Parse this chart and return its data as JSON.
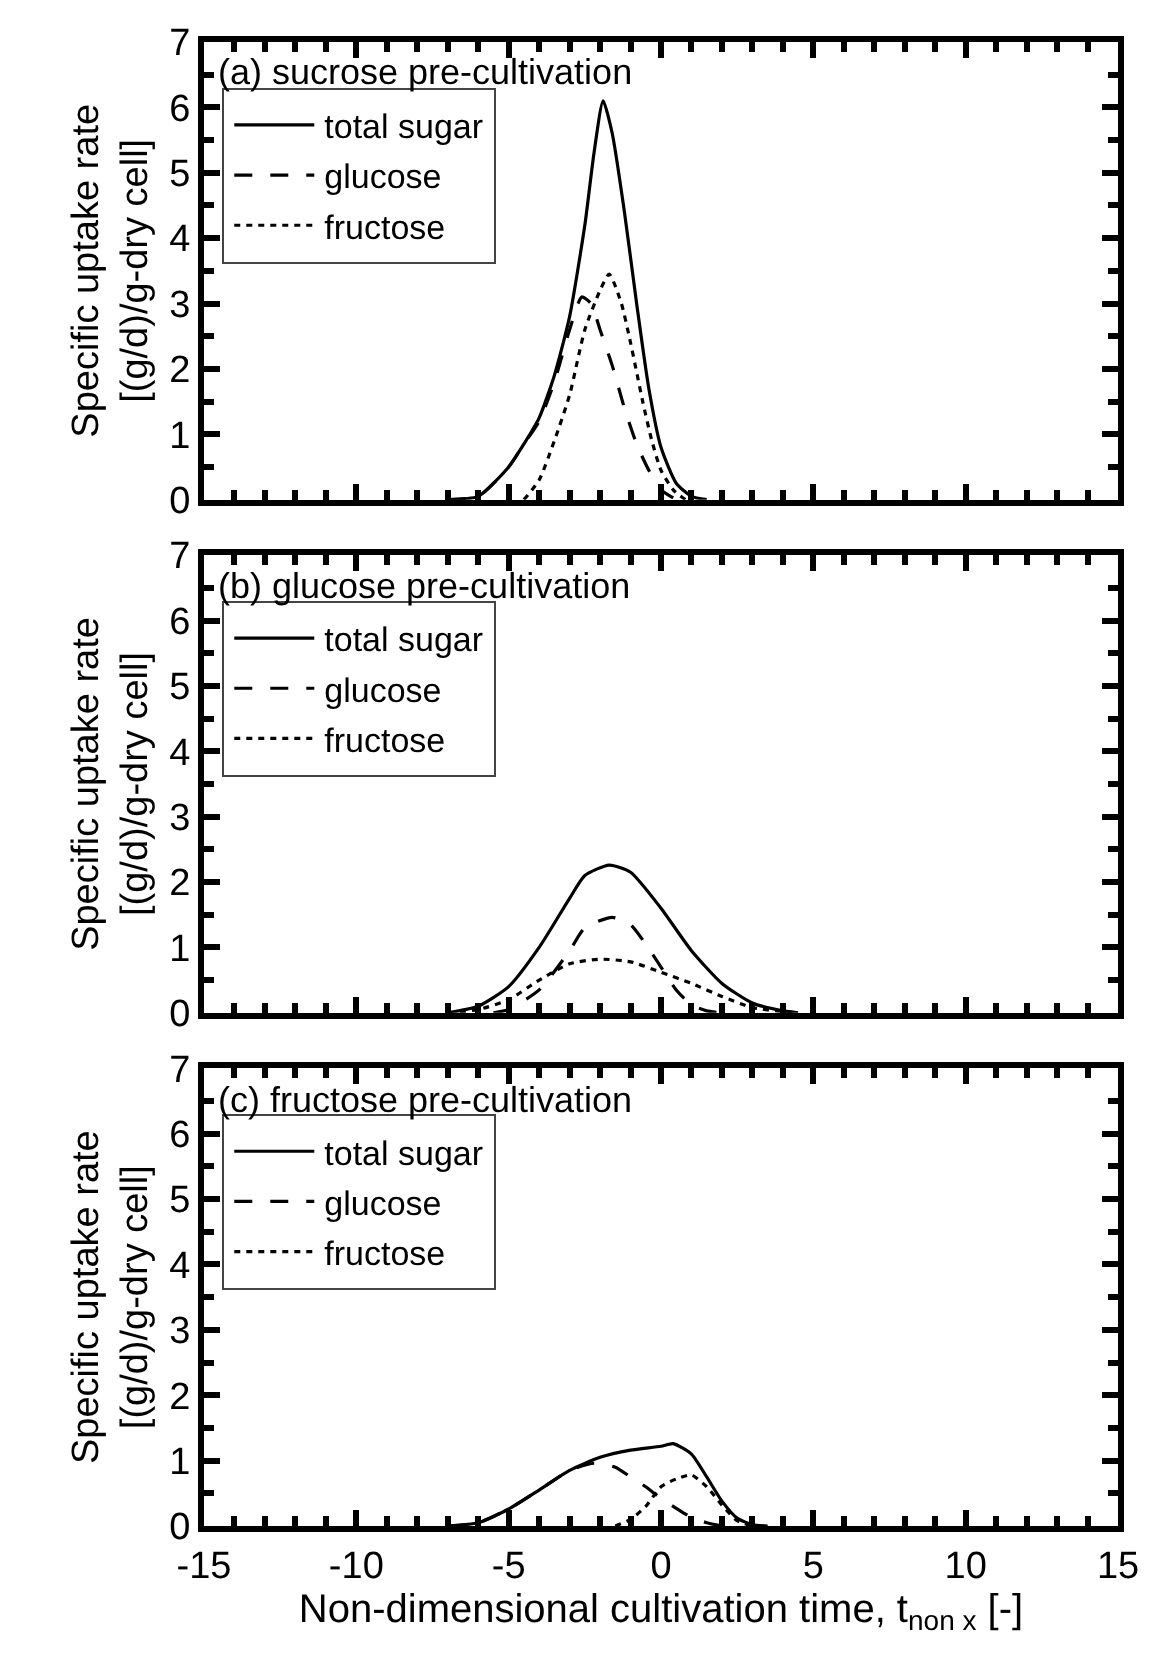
{
  "chart_data": [
    {
      "type": "line",
      "title": "(a) sucrose pre-cultivation",
      "ylabel": "Specific uptake rate\n[(g/d)/g-dry cell]",
      "xlim": [
        -15,
        15
      ],
      "xticks": [
        -15,
        -10,
        -5,
        0,
        5,
        10,
        15
      ],
      "ylim": [
        0,
        7
      ],
      "yticks": [
        0,
        1,
        2,
        3,
        4,
        5,
        6,
        7
      ],
      "tick_labels": "y",
      "legend": "top left",
      "marker": "none",
      "series": [
        {
          "name": "total sugar",
          "color": "#000000",
          "line_style": "solid",
          "x": [
            -7,
            -6,
            -5,
            -4.5,
            -4,
            -3.5,
            -3,
            -2.5,
            -2.2,
            -1.9,
            -1.6,
            -1.2,
            -0.8,
            -0.4,
            0,
            0.5,
            1,
            1.5
          ],
          "values": [
            0,
            0.05,
            0.5,
            0.85,
            1.25,
            1.9,
            2.8,
            4.2,
            5.3,
            6.1,
            5.6,
            4.4,
            3.0,
            1.7,
            0.8,
            0.25,
            0.05,
            0
          ]
        },
        {
          "name": "glucose",
          "color": "#000000",
          "line_style": "dashed",
          "x": [
            -7,
            -6,
            -5,
            -4.5,
            -4,
            -3.5,
            -3,
            -2.6,
            -2.3,
            -2,
            -1.6,
            -1.2,
            -0.8,
            -0.4,
            0,
            0.5
          ],
          "values": [
            0,
            0.05,
            0.5,
            0.85,
            1.2,
            1.8,
            2.6,
            3.1,
            3.0,
            2.6,
            2.05,
            1.4,
            0.85,
            0.45,
            0.15,
            0
          ]
        },
        {
          "name": "fructose",
          "color": "#000000",
          "line_style": "dotted",
          "x": [
            -4.5,
            -4,
            -3.5,
            -3,
            -2.5,
            -2,
            -1.7,
            -1.3,
            -1,
            -0.6,
            -0.3,
            0,
            0.4,
            0.8
          ],
          "values": [
            0,
            0.3,
            0.9,
            1.6,
            2.6,
            3.2,
            3.45,
            3.0,
            2.4,
            1.5,
            0.9,
            0.45,
            0.15,
            0
          ]
        }
      ]
    },
    {
      "type": "line",
      "title": "(b) glucose pre-cultivation",
      "ylabel": "Specific uptake rate\n[(g/d)/g-dry cell]",
      "xlim": [
        -15,
        15
      ],
      "xticks": [
        -15,
        -10,
        -5,
        0,
        5,
        10,
        15
      ],
      "ylim": [
        0,
        7
      ],
      "yticks": [
        0,
        1,
        2,
        3,
        4,
        5,
        6,
        7
      ],
      "tick_labels": "y",
      "legend": "top left",
      "marker": "none",
      "series": [
        {
          "name": "total sugar",
          "color": "#000000",
          "line_style": "solid",
          "x": [
            -7,
            -6,
            -5,
            -4,
            -3,
            -2.5,
            -1.7,
            -1,
            0,
            1,
            2,
            3,
            4,
            4.5
          ],
          "values": [
            0,
            0.1,
            0.4,
            1.0,
            1.75,
            2.1,
            2.26,
            2.15,
            1.6,
            0.95,
            0.45,
            0.15,
            0.03,
            0
          ]
        },
        {
          "name": "glucose",
          "color": "#000000",
          "line_style": "dashed",
          "x": [
            -5.5,
            -5,
            -4,
            -3,
            -2.5,
            -1.6,
            -1,
            -0.5,
            0,
            0.5,
            1,
            1.5,
            2
          ],
          "values": [
            0,
            0.05,
            0.35,
            0.95,
            1.3,
            1.46,
            1.35,
            1.05,
            0.7,
            0.35,
            0.12,
            0.03,
            0
          ]
        },
        {
          "name": "fructose",
          "color": "#000000",
          "line_style": "dotted",
          "x": [
            -7,
            -6,
            -5,
            -4,
            -3,
            -2,
            -1,
            0,
            1,
            2,
            3,
            4,
            4.5
          ],
          "values": [
            0,
            0.05,
            0.2,
            0.5,
            0.75,
            0.82,
            0.78,
            0.62,
            0.45,
            0.25,
            0.08,
            0.02,
            0
          ]
        }
      ]
    },
    {
      "type": "line",
      "title": "(c) fructose pre-cultivation",
      "ylabel": "Specific uptake rate\n[(g/d)/g-dry cell]",
      "xlabel": "Non-dimensional cultivation time, t$_{non x}$ [-]",
      "xlim": [
        -15,
        15
      ],
      "xticks": [
        -15,
        -10,
        -5,
        0,
        5,
        10,
        15
      ],
      "ylim": [
        0,
        7
      ],
      "yticks": [
        0,
        1,
        2,
        3,
        4,
        5,
        6,
        7
      ],
      "legend": "top left",
      "marker": "none",
      "series": [
        {
          "name": "total sugar",
          "color": "#000000",
          "line_style": "solid",
          "x": [
            -7,
            -6,
            -5,
            -4,
            -3,
            -2,
            -1,
            0,
            0.4,
            1,
            1.5,
            2,
            2.5,
            3,
            3.5
          ],
          "values": [
            0,
            0.05,
            0.26,
            0.55,
            0.85,
            1.05,
            1.16,
            1.22,
            1.26,
            1.1,
            0.75,
            0.38,
            0.12,
            0.02,
            0
          ]
        },
        {
          "name": "glucose",
          "color": "#000000",
          "line_style": "dashed",
          "x": [
            -7,
            -6,
            -5,
            -4,
            -3,
            -2.2,
            -1.5,
            -1,
            -0.5,
            0,
            0.5,
            1,
            1.5,
            2
          ],
          "values": [
            0,
            0.05,
            0.26,
            0.55,
            0.85,
            0.96,
            0.9,
            0.75,
            0.6,
            0.42,
            0.27,
            0.13,
            0.05,
            0
          ]
        },
        {
          "name": "fructose",
          "color": "#000000",
          "line_style": "dotted",
          "x": [
            -1.5,
            -1,
            -0.5,
            0,
            0.5,
            1,
            1.5,
            2,
            2.5,
            3
          ],
          "values": [
            0,
            0.1,
            0.3,
            0.6,
            0.72,
            0.78,
            0.6,
            0.32,
            0.08,
            0
          ]
        }
      ]
    }
  ]
}
